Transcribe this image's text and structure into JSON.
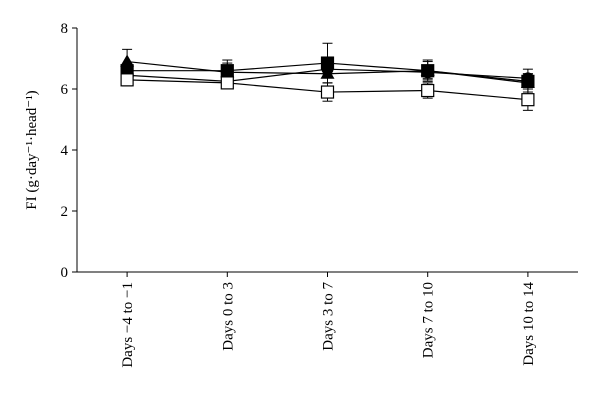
{
  "chart_data": {
    "type": "line",
    "y_label": "FI (g·day⁻¹·head⁻¹)",
    "categories": [
      "Days −4 to −1",
      "Days 0 to 3",
      "Days 3 to 7",
      "Days 7 to 10",
      "Days 10 to 14"
    ],
    "series": [
      {
        "color": "#000000",
        "marker": "square",
        "values": [
          6.6,
          6.6,
          6.85,
          6.6,
          6.25
        ],
        "errors": [
          0.2,
          0.35,
          0.65,
          0.35,
          0.25
        ]
      },
      {
        "color": "#000000",
        "marker": "triangle",
        "values": [
          6.9,
          6.55,
          6.5,
          6.6,
          6.2
        ],
        "errors": [
          0.4,
          0.3,
          0.3,
          0.3,
          0.3
        ]
      },
      {
        "color": "#000000",
        "marker": "circle",
        "values": [
          6.45,
          6.25,
          6.65,
          6.55,
          6.35
        ],
        "errors": [
          0.2,
          0.2,
          0.2,
          0.2,
          0.3
        ]
      },
      {
        "color": "#000000",
        "marker": "open-square",
        "values": [
          6.3,
          6.2,
          5.9,
          5.95,
          5.65
        ],
        "errors": [
          0.2,
          0.15,
          0.3,
          0.25,
          0.35
        ]
      }
    ],
    "ylim": [
      0,
      8
    ],
    "yticks": [
      0,
      2,
      4,
      6,
      8
    ],
    "grid": false
  }
}
